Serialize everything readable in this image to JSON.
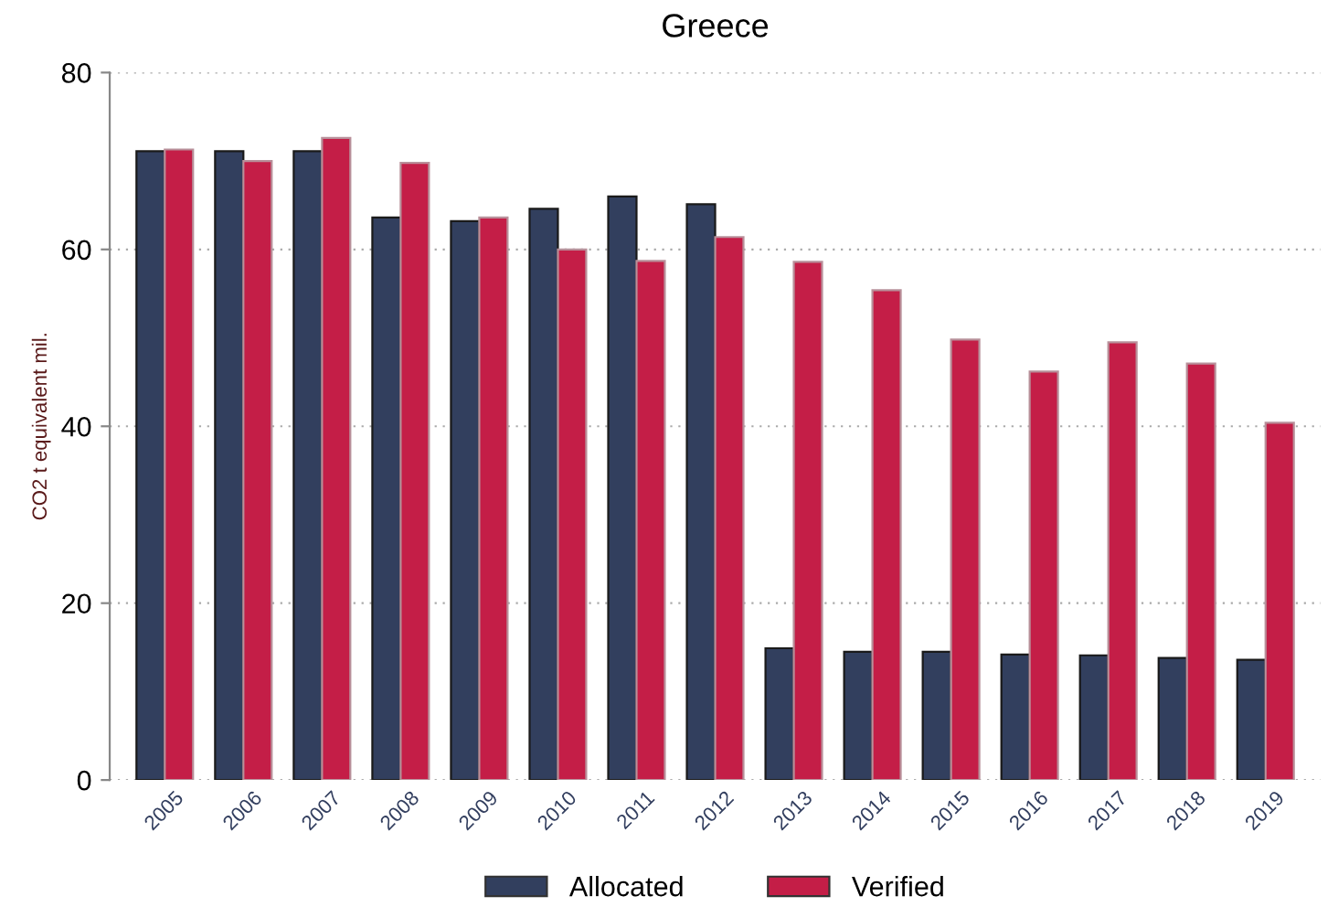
{
  "chart_data": {
    "type": "bar",
    "title": "Greece",
    "ylabel": "CO2 t equivalent mil.",
    "categories": [
      "2005",
      "2006",
      "2007",
      "2008",
      "2009",
      "2010",
      "2011",
      "2012",
      "2013",
      "2014",
      "2015",
      "2016",
      "2017",
      "2018",
      "2019"
    ],
    "series": [
      {
        "name": "Allocated",
        "color": "#323f5e",
        "values": [
          71.1,
          71.1,
          71.1,
          63.6,
          63.2,
          64.6,
          66.0,
          65.1,
          14.9,
          14.5,
          14.5,
          14.2,
          14.1,
          13.8,
          13.6
        ]
      },
      {
        "name": "Verified",
        "color": "#c41e47",
        "values": [
          71.3,
          70.0,
          72.6,
          69.8,
          63.6,
          60.0,
          58.7,
          61.4,
          58.6,
          55.4,
          49.8,
          46.2,
          49.5,
          47.1,
          40.4
        ]
      }
    ],
    "ylim": [
      0,
      80
    ],
    "yticks": [
      0,
      20,
      40,
      60,
      80
    ],
    "grid": "y",
    "legend": "bottom"
  }
}
